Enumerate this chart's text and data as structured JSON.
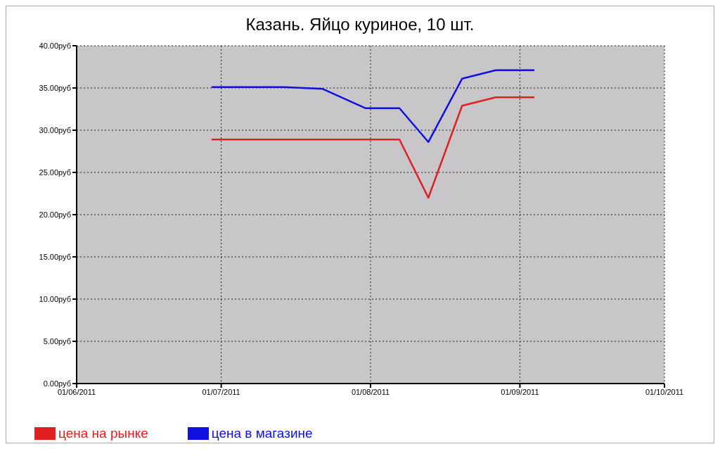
{
  "chart_data": {
    "type": "line",
    "title": "Казань. Яйцо куриное, 10 шт.",
    "x": [
      "2011-06-29",
      "2011-07-14",
      "2011-07-22",
      "2011-07-31",
      "2011-08-07",
      "2011-08-13",
      "2011-08-20",
      "2011-08-27",
      "2011-09-04"
    ],
    "series": [
      {
        "name": "цена на рынке",
        "color": "#e02020",
        "values": [
          28.9,
          28.9,
          28.9,
          28.9,
          28.9,
          22.0,
          32.9,
          33.9,
          33.9
        ]
      },
      {
        "name": "цена в магазине",
        "color": "#1010e0",
        "values": [
          35.1,
          35.1,
          34.9,
          32.6,
          32.6,
          28.6,
          36.1,
          37.1,
          37.1
        ]
      }
    ],
    "xlim": [
      "2011-06-01",
      "2011-10-01"
    ],
    "xticks": [
      {
        "value": "2011-06-01",
        "label": "01/06/2011"
      },
      {
        "value": "2011-07-01",
        "label": "01/07/2011"
      },
      {
        "value": "2011-08-01",
        "label": "01/08/2011"
      },
      {
        "value": "2011-09-01",
        "label": "01/09/2011"
      },
      {
        "value": "2011-10-01",
        "label": "01/10/2011"
      }
    ],
    "ylim": [
      0,
      40
    ],
    "yticks": [
      {
        "value": 0,
        "label": "0.00руб"
      },
      {
        "value": 5,
        "label": "5.00руб"
      },
      {
        "value": 10,
        "label": "10.00руб"
      },
      {
        "value": 15,
        "label": "15.00руб"
      },
      {
        "value": 20,
        "label": "20.00руб"
      },
      {
        "value": 25,
        "label": "25.00руб"
      },
      {
        "value": 30,
        "label": "30.00руб"
      },
      {
        "value": 35,
        "label": "35.00руб"
      },
      {
        "value": 40,
        "label": "40.00руб"
      }
    ],
    "grid": true,
    "legend": "bottom left",
    "marker": "none",
    "line_style": "solid"
  }
}
